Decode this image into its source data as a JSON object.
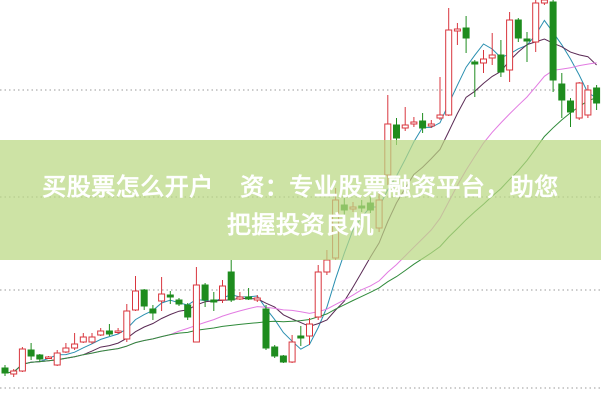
{
  "overlay": {
    "line1": "买股票怎么开户   资：专业股票融资平台，助您",
    "line2": "把握投资良机",
    "background": "#bad882"
  },
  "chart_data": {
    "type": "candlestick",
    "title": "",
    "xlabel": "",
    "ylabel": "",
    "axes_visible": false,
    "grid": "horizontal dotted",
    "colors": {
      "up": "#d9363e",
      "down": "#1e8c1e",
      "ma5": "#2a8fb0",
      "ma10": "#5a2a55",
      "ma20": "#e27be2",
      "ma30": "#2f8a3a",
      "grid": "#999999"
    },
    "ma_periods": [
      5,
      10,
      20,
      30
    ],
    "candles_ohlc": [
      [
        32,
        35,
        24,
        27
      ],
      [
        26,
        31,
        23,
        29
      ],
      [
        29,
        53,
        28,
        51
      ],
      [
        50,
        57,
        40,
        44
      ],
      [
        45,
        46,
        38,
        41
      ],
      [
        42,
        44,
        41,
        43
      ],
      [
        35,
        50,
        34,
        47
      ],
      [
        48,
        57,
        47,
        52
      ],
      [
        52,
        67,
        50,
        56
      ],
      [
        58,
        67,
        57,
        63
      ],
      [
        58,
        67,
        56,
        63
      ],
      [
        65,
        72,
        64,
        69
      ],
      [
        69,
        76,
        64,
        66
      ],
      [
        68,
        72,
        66,
        69
      ],
      [
        61,
        96,
        58,
        89
      ],
      [
        90,
        124,
        89,
        109
      ],
      [
        110,
        111,
        90,
        94
      ],
      [
        91,
        95,
        80,
        87
      ],
      [
        99,
        123,
        89,
        106
      ],
      [
        105,
        109,
        96,
        103
      ],
      [
        100,
        102,
        94,
        96
      ],
      [
        95,
        97,
        80,
        83
      ],
      [
        58,
        133,
        58,
        115
      ],
      [
        115,
        117,
        93,
        100
      ],
      [
        100,
        108,
        89,
        98
      ],
      [
        100,
        120,
        97,
        114
      ],
      [
        128,
        140,
        98,
        100
      ],
      [
        101,
        108,
        100,
        103
      ],
      [
        103,
        112,
        100,
        101
      ],
      [
        100,
        105,
        98,
        102
      ],
      [
        91,
        95,
        50,
        52
      ],
      [
        53,
        55,
        42,
        44
      ],
      [
        44,
        45,
        37,
        38
      ],
      [
        38,
        65,
        37,
        58
      ],
      [
        64,
        74,
        54,
        62
      ],
      [
        64,
        82,
        55,
        76
      ],
      [
        83,
        135,
        80,
        128
      ],
      [
        128,
        150,
        125,
        140
      ],
      [
        142,
        212,
        140,
        200
      ],
      [
        195,
        202,
        185,
        190
      ],
      [
        191,
        198,
        188,
        193
      ],
      [
        194,
        200,
        188,
        192
      ],
      [
        197,
        205,
        187,
        190
      ],
      [
        172,
        210,
        168,
        200
      ],
      [
        225,
        305,
        215,
        276
      ],
      [
        275,
        282,
        255,
        262
      ],
      [
        272,
        293,
        269,
        275
      ],
      [
        276,
        283,
        273,
        278
      ],
      [
        279,
        287,
        267,
        272
      ],
      [
        274,
        280,
        272,
        276
      ],
      [
        282,
        323,
        280,
        285
      ],
      [
        285,
        392,
        284,
        370
      ],
      [
        369,
        377,
        355,
        371
      ],
      [
        372,
        384,
        347,
        362
      ],
      [
        338,
        340,
        303,
        336
      ],
      [
        337,
        350,
        327,
        341
      ],
      [
        342,
        367,
        335,
        345
      ],
      [
        345,
        360,
        323,
        328
      ],
      [
        330,
        388,
        318,
        380
      ],
      [
        380,
        382,
        358,
        362
      ],
      [
        361,
        368,
        338,
        359
      ],
      [
        358,
        400,
        348,
        397
      ],
      [
        397,
        400,
        395,
        400
      ],
      [
        398,
        400,
        308,
        320
      ],
      [
        316,
        327,
        282,
        300
      ],
      [
        299,
        302,
        273,
        288
      ],
      [
        282,
        318,
        280,
        317
      ],
      [
        285,
        315,
        282,
        310
      ],
      [
        312,
        315,
        290,
        297
      ]
    ]
  }
}
